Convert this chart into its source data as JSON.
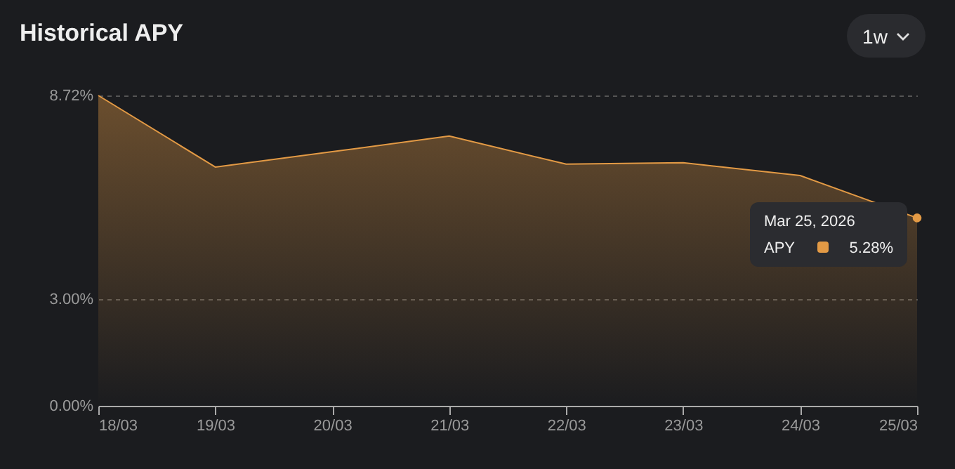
{
  "chart_data": {
    "type": "area",
    "title": "Historical APY",
    "categories": [
      "18/03",
      "19/03",
      "20/03",
      "21/03",
      "22/03",
      "23/03",
      "24/03",
      "25/03"
    ],
    "series": [
      {
        "color": "#e39a45",
        "values": [
          8.72,
          6.71,
          7.14,
          7.58,
          6.79,
          6.83,
          6.47,
          5.28
        ]
      }
    ],
    "ylim": [
      0,
      8.72
    ],
    "yticks": [
      {
        "value": 0,
        "label": "0.00%"
      },
      {
        "value": 3,
        "label": "3.00%"
      },
      {
        "value": 8.72,
        "label": "8.72%"
      }
    ],
    "grid": "y",
    "annotations": [
      "Mar 25, 2026",
      "APY",
      "5.28%",
      "1w"
    ]
  }
}
